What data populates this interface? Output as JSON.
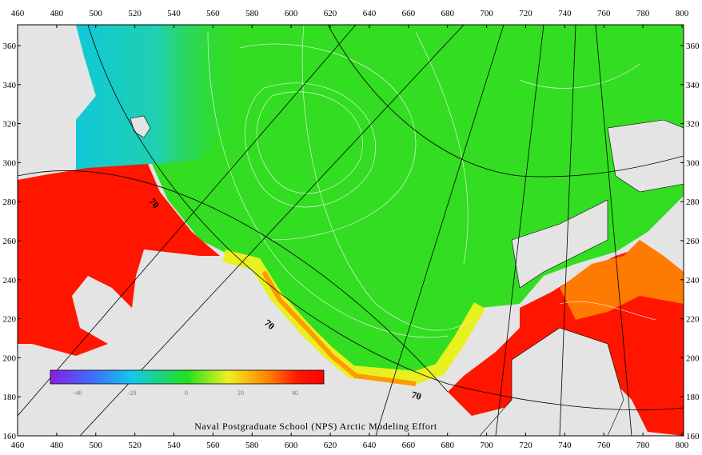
{
  "axes": {
    "x_ticks": [
      "460",
      "480",
      "500",
      "520",
      "540",
      "560",
      "580",
      "600",
      "620",
      "640",
      "660",
      "680",
      "700",
      "720",
      "740",
      "760",
      "780",
      "800"
    ],
    "y_ticks": [
      "360",
      "340",
      "320",
      "300",
      "280",
      "260",
      "240",
      "220",
      "200",
      "180",
      "160"
    ]
  },
  "colorbar": {
    "ticks": [
      "-40",
      "-20",
      "0",
      "20",
      "40"
    ]
  },
  "contour_labels": [
    "70",
    "70",
    "70"
  ],
  "caption": "Naval Postgraduate School (NPS) Arctic Modeling Effort"
}
